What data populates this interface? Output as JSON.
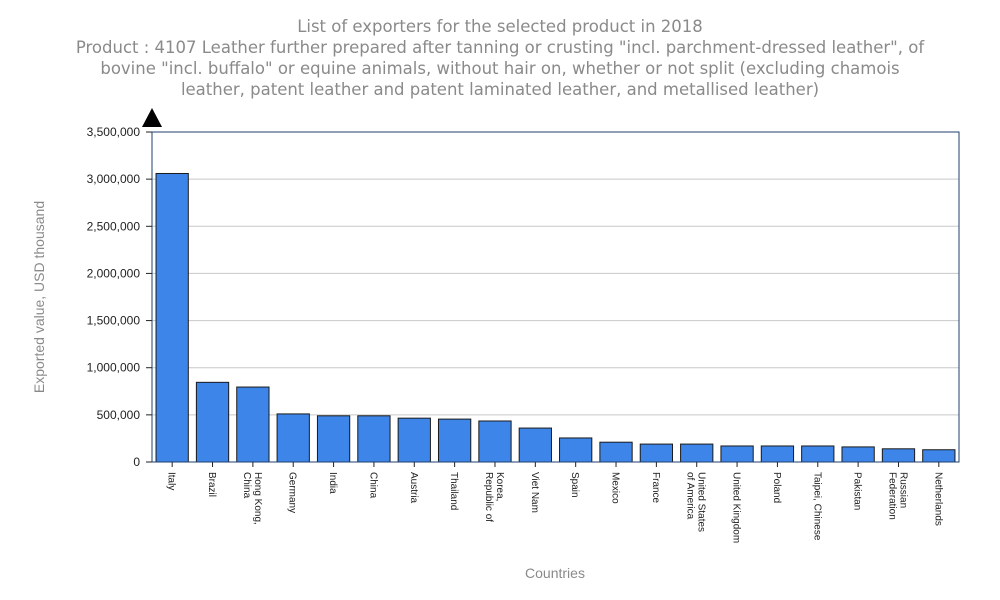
{
  "chart_data": {
    "type": "bar",
    "title": "List of exporters for the selected product in 2018",
    "subtitle_lines": [
      "Product : 4107 Leather further prepared after tanning or crusting \"incl. parchment-dressed leather\", of",
      "bovine \"incl. buffalo\" or equine animals, without hair on, whether or not split (excluding chamois",
      "leather, patent leather and patent laminated leather, and metallised leather)"
    ],
    "xlabel": "Countries",
    "ylabel": "Exported value, USD thousand",
    "ylim": [
      0,
      3500000
    ],
    "yticks": [
      0,
      500000,
      1000000,
      1500000,
      2000000,
      2500000,
      3000000,
      3500000
    ],
    "ytick_labels": [
      "0",
      "500,000",
      "1,000,000",
      "1,500,000",
      "2,000,000",
      "2,500,000",
      "3,000,000",
      "3,500,000"
    ],
    "grid": true,
    "bar_color": "#3d85e8",
    "categories": [
      [
        "Italy"
      ],
      [
        "Brazil"
      ],
      [
        "Hong Kong,",
        "China"
      ],
      [
        "Germany"
      ],
      [
        "India"
      ],
      [
        "China"
      ],
      [
        "Austria"
      ],
      [
        "Thailand"
      ],
      [
        "Korea,",
        "Republic of"
      ],
      [
        "Viet Nam"
      ],
      [
        "Spain"
      ],
      [
        "Mexico"
      ],
      [
        "France"
      ],
      [
        "United States",
        "of America"
      ],
      [
        "United Kingdom"
      ],
      [
        "Poland"
      ],
      [
        "Taipei, Chinese"
      ],
      [
        "Pakistan"
      ],
      [
        "Russian",
        "Federation"
      ],
      [
        "Netherlands"
      ]
    ],
    "values": [
      3060000,
      845000,
      795000,
      510000,
      490000,
      490000,
      465000,
      455000,
      435000,
      360000,
      255000,
      210000,
      190000,
      190000,
      170000,
      170000,
      170000,
      160000,
      140000,
      130000
    ]
  }
}
